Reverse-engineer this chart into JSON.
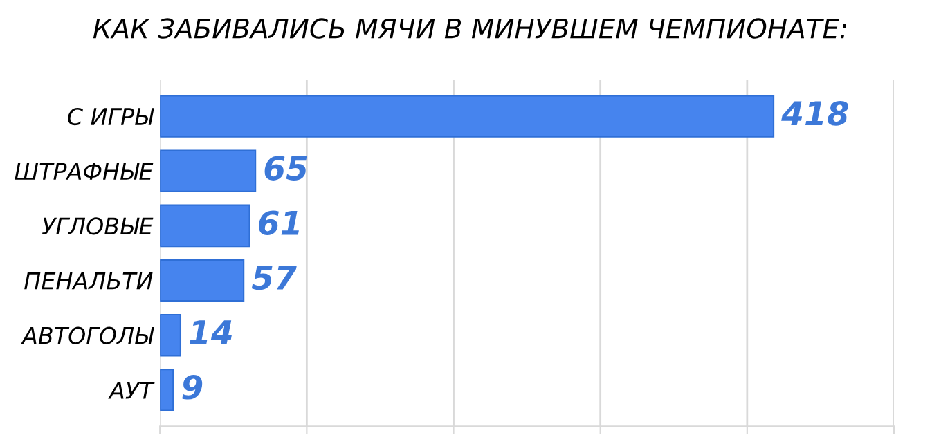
{
  "chart_data": {
    "type": "bar",
    "orientation": "horizontal",
    "title": "КАК ЗАБИВАЛИСЬ МЯЧИ В МИНУВШЕМ ЧЕМПИОНАТЕ:",
    "categories": [
      "С ИГРЫ",
      "ШТРАФНЫЕ",
      "УГЛОВЫЕ",
      "ПЕНАЛЬТИ",
      "АВТОГОЛЫ",
      "АУТ"
    ],
    "values": [
      418,
      65,
      61,
      57,
      14,
      9
    ],
    "color": "#4684ee",
    "data_labels": true,
    "xlim": [
      0,
      500
    ],
    "xticks": [
      {
        "value": 0,
        "label": null
      },
      {
        "value": 100,
        "label": null
      },
      {
        "value": 200,
        "label": null
      },
      {
        "value": 300,
        "label": null
      },
      {
        "value": 400,
        "label": null
      },
      {
        "value": 500,
        "label": null
      }
    ],
    "grid": "x",
    "legend": false
  }
}
